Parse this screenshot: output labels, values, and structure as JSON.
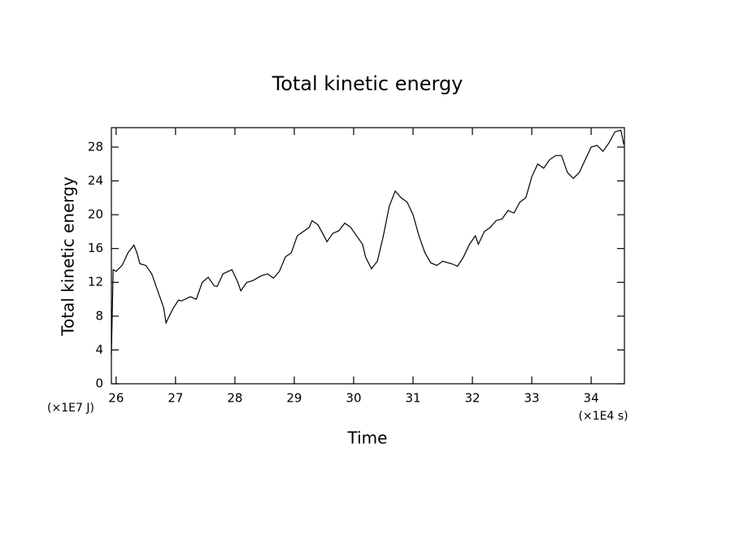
{
  "chart_data": {
    "type": "line",
    "title": "Total kinetic energy",
    "x_label": "Time",
    "y_label": "Total kinetic energy",
    "x_unit": "(×1E4 s)",
    "y_unit": "(×1E7 J)",
    "color": "#000000",
    "x": [
      25.92,
      25.95,
      26.0,
      26.1,
      26.2,
      26.3,
      26.35,
      26.4,
      26.5,
      26.6,
      26.7,
      26.75,
      26.8,
      26.84,
      26.95,
      27.05,
      27.1,
      27.25,
      27.35,
      27.45,
      27.55,
      27.65,
      27.7,
      27.8,
      27.95,
      28.05,
      28.1,
      28.2,
      28.3,
      28.45,
      28.55,
      28.65,
      28.75,
      28.85,
      28.95,
      29.05,
      29.15,
      29.25,
      29.3,
      29.4,
      29.5,
      29.55,
      29.65,
      29.75,
      29.85,
      29.95,
      30.05,
      30.15,
      30.2,
      30.3,
      30.4,
      30.5,
      30.6,
      30.7,
      30.8,
      30.9,
      31.0,
      31.1,
      31.2,
      31.3,
      31.4,
      31.5,
      31.65,
      31.75,
      31.85,
      31.95,
      32.05,
      32.1,
      32.2,
      32.3,
      32.4,
      32.5,
      32.6,
      32.7,
      32.8,
      32.9,
      33.0,
      33.1,
      33.2,
      33.3,
      33.4,
      33.5,
      33.6,
      33.7,
      33.8,
      33.9,
      34.0,
      34.1,
      34.2,
      34.3,
      34.4,
      34.5,
      34.55
    ],
    "values": [
      3.5,
      13.5,
      13.3,
      14,
      15.5,
      16.4,
      15.5,
      14.2,
      14,
      13,
      11,
      10,
      9,
      7.2,
      8.8,
      9.9,
      9.8,
      10.3,
      10,
      12,
      12.6,
      11.6,
      11.5,
      13,
      13.5,
      12,
      11,
      12,
      12.2,
      12.8,
      13,
      12.5,
      13.3,
      15,
      15.5,
      17.5,
      18,
      18.5,
      19.3,
      18.8,
      17.5,
      16.8,
      17.8,
      18.1,
      19,
      18.5,
      17.5,
      16.5,
      15,
      13.6,
      14.5,
      17.5,
      21,
      22.8,
      22,
      21.5,
      20,
      17.5,
      15.5,
      14.3,
      14,
      14.5,
      14.2,
      13.9,
      15,
      16.5,
      17.5,
      16.5,
      18,
      18.5,
      19.3,
      19.5,
      20.5,
      20.2,
      21.5,
      22,
      24.5,
      26,
      25.5,
      26.5,
      27,
      27,
      25,
      24.3,
      25,
      26.5,
      28,
      28.2,
      27.5,
      28.5,
      29.8,
      30,
      28.3
    ],
    "xlim": [
      25.92,
      34.56
    ],
    "ylim": [
      0,
      30.3
    ],
    "xticks": [
      26,
      27,
      28,
      29,
      30,
      31,
      32,
      33,
      34
    ],
    "yticks": [
      0,
      4,
      8,
      12,
      16,
      20,
      24,
      28
    ]
  }
}
